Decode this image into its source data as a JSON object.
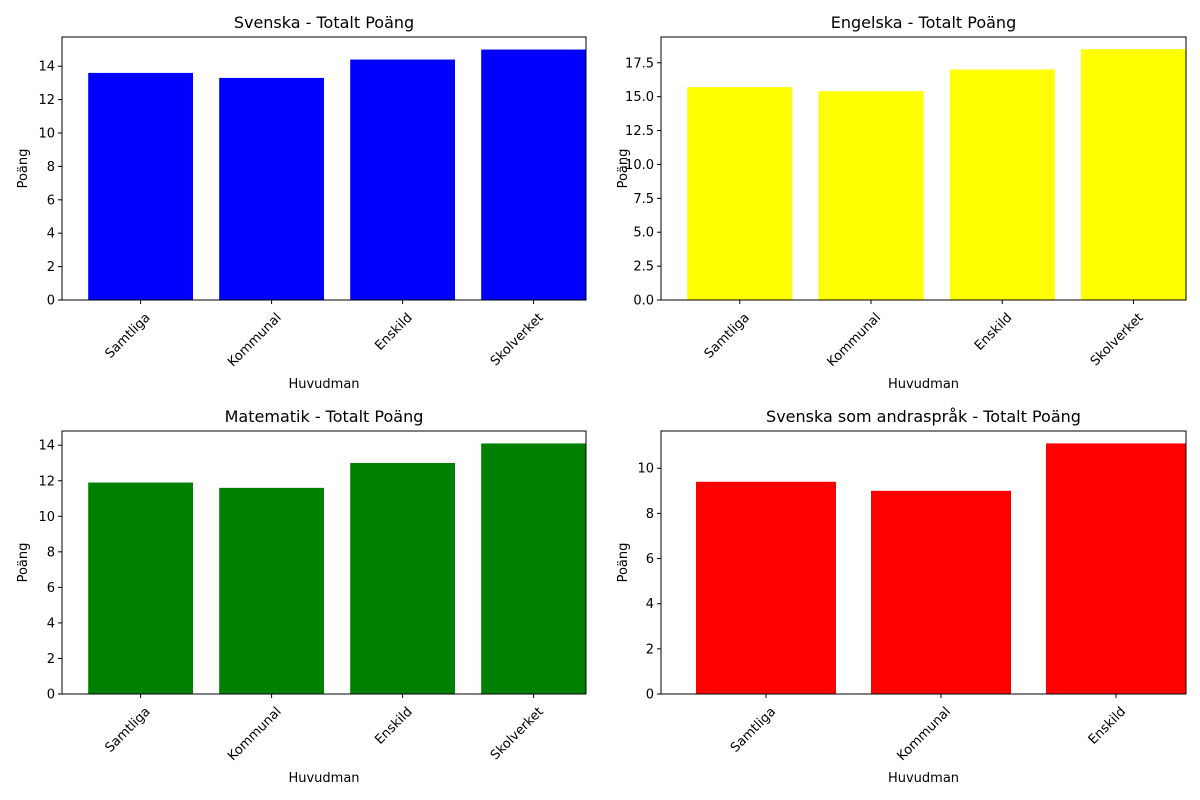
{
  "chart_data": [
    {
      "type": "bar",
      "title": "Svenska - Totalt Poäng",
      "xlabel": "Huvudman",
      "ylabel": "Poäng",
      "categories": [
        "Samtliga",
        "Kommunal",
        "Enskild",
        "Skolverket"
      ],
      "values": [
        13.6,
        13.3,
        14.4,
        15.0
      ],
      "color": "#0000ff",
      "ylim": [
        0,
        15.75
      ],
      "yticks": [
        0,
        2,
        4,
        6,
        8,
        10,
        12,
        14
      ],
      "ytick_labels": [
        "0",
        "2",
        "4",
        "6",
        "8",
        "10",
        "12",
        "14"
      ],
      "grid": false
    },
    {
      "type": "bar",
      "title": "Engelska - Totalt Poäng",
      "xlabel": "Huvudman",
      "ylabel": "Poäng",
      "categories": [
        "Samtliga",
        "Kommunal",
        "Enskild",
        "Skolverket"
      ],
      "values": [
        15.7,
        15.4,
        17.0,
        18.5
      ],
      "color": "#ffff00",
      "ylim": [
        0,
        19.4
      ],
      "yticks": [
        0,
        2.5,
        5,
        7.5,
        10,
        12.5,
        15,
        17.5
      ],
      "ytick_labels": [
        "0.0",
        "2.5",
        "5.0",
        "7.5",
        "10.0",
        "12.5",
        "15.0",
        "17.5"
      ],
      "grid": false
    },
    {
      "type": "bar",
      "title": "Matematik - Totalt Poäng",
      "xlabel": "Huvudman",
      "ylabel": "Poäng",
      "categories": [
        "Samtliga",
        "Kommunal",
        "Enskild",
        "Skolverket"
      ],
      "values": [
        11.9,
        11.6,
        13.0,
        14.1
      ],
      "color": "#008000",
      "ylim": [
        0,
        14.8
      ],
      "yticks": [
        0,
        2,
        4,
        6,
        8,
        10,
        12,
        14
      ],
      "ytick_labels": [
        "0",
        "2",
        "4",
        "6",
        "8",
        "10",
        "12",
        "14"
      ],
      "grid": false
    },
    {
      "type": "bar",
      "title": "Svenska som andraspråk - Totalt Poäng",
      "xlabel": "Huvudman",
      "ylabel": "Poäng",
      "categories": [
        "Samtliga",
        "Kommunal",
        "Enskild"
      ],
      "values": [
        9.4,
        9.0,
        11.1
      ],
      "color": "#ff0000",
      "ylim": [
        0,
        11.65
      ],
      "yticks": [
        0,
        2,
        4,
        6,
        8,
        10
      ],
      "ytick_labels": [
        "0",
        "2",
        "4",
        "6",
        "8",
        "10"
      ],
      "grid": false
    }
  ]
}
